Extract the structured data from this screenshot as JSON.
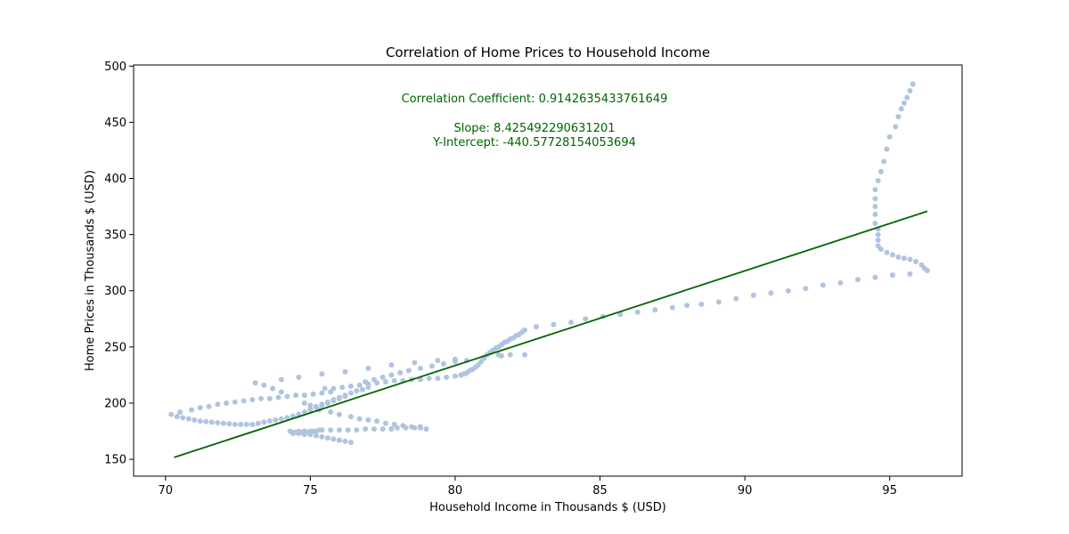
{
  "chart_data": {
    "type": "scatter",
    "title": "Correlation of Home Prices to Household Income",
    "xlabel": "Household Income in Thousands $ (USD)",
    "ylabel": "Home Prices in Thousands $ (USD)",
    "xlim": [
      68.9,
      97.5
    ],
    "ylim": [
      135,
      501
    ],
    "xticks": [
      70,
      75,
      80,
      85,
      90,
      95
    ],
    "yticks": [
      150,
      200,
      250,
      300,
      350,
      400,
      450,
      500
    ],
    "grid": false,
    "annotations": {
      "correlation": "Correlation Coefficient: 0.9142635433761649",
      "slope": "Slope: 8.425492290631201",
      "intercept": "Y-Intercept: -440.57728154053694"
    },
    "colors": {
      "points": "#b0c4de",
      "regression": "#006400"
    },
    "regression": {
      "slope": 8.425492290631201,
      "intercept": -440.57728154053694,
      "x_range": [
        70.3,
        96.3
      ]
    },
    "points": [
      [
        70.2,
        190
      ],
      [
        70.4,
        188
      ],
      [
        70.6,
        187
      ],
      [
        70.8,
        186
      ],
      [
        71.0,
        185
      ],
      [
        71.2,
        184
      ],
      [
        71.4,
        183.5
      ],
      [
        71.6,
        183
      ],
      [
        71.8,
        182.5
      ],
      [
        72.0,
        182
      ],
      [
        72.2,
        181.5
      ],
      [
        72.4,
        181
      ],
      [
        72.6,
        181
      ],
      [
        72.8,
        181
      ],
      [
        73.0,
        181
      ],
      [
        73.2,
        182
      ],
      [
        73.4,
        183
      ],
      [
        73.6,
        184
      ],
      [
        73.8,
        185
      ],
      [
        74.0,
        186
      ],
      [
        74.2,
        187
      ],
      [
        74.4,
        188.5
      ],
      [
        74.6,
        190
      ],
      [
        74.8,
        192
      ],
      [
        75.0,
        194
      ],
      [
        75.2,
        196
      ],
      [
        75.4,
        198
      ],
      [
        75.6,
        200
      ],
      [
        75.8,
        202
      ],
      [
        76.0,
        204
      ],
      [
        76.2,
        206
      ],
      [
        70.5,
        192
      ],
      [
        70.9,
        194
      ],
      [
        71.2,
        196
      ],
      [
        71.5,
        197
      ],
      [
        71.8,
        199
      ],
      [
        72.1,
        200
      ],
      [
        72.4,
        201
      ],
      [
        72.7,
        202
      ],
      [
        73.0,
        203
      ],
      [
        73.3,
        204
      ],
      [
        73.6,
        204
      ],
      [
        73.9,
        205
      ],
      [
        74.2,
        206
      ],
      [
        74.5,
        207
      ],
      [
        74.8,
        207
      ],
      [
        75.1,
        208
      ],
      [
        75.4,
        209
      ],
      [
        75.7,
        210
      ],
      [
        74.3,
        175
      ],
      [
        74.4,
        174
      ],
      [
        74.5,
        174
      ],
      [
        74.6,
        175
      ],
      [
        74.7,
        174
      ],
      [
        74.8,
        175
      ],
      [
        74.9,
        174
      ],
      [
        75.0,
        175
      ],
      [
        75.1,
        175
      ],
      [
        75.2,
        175
      ],
      [
        75.3,
        176
      ],
      [
        75.4,
        176
      ],
      [
        74.4,
        173
      ],
      [
        74.6,
        173
      ],
      [
        74.8,
        172
      ],
      [
        75.0,
        172
      ],
      [
        75.2,
        171
      ],
      [
        75.4,
        170
      ],
      [
        75.6,
        169
      ],
      [
        75.8,
        168
      ],
      [
        76.0,
        167
      ],
      [
        76.2,
        166
      ],
      [
        76.4,
        165
      ],
      [
        75.7,
        176
      ],
      [
        76.0,
        176
      ],
      [
        76.3,
        176
      ],
      [
        76.6,
        176
      ],
      [
        76.9,
        177
      ],
      [
        77.2,
        177
      ],
      [
        77.5,
        177
      ],
      [
        77.8,
        177
      ],
      [
        78.0,
        178
      ],
      [
        78.3,
        178
      ],
      [
        78.6,
        178
      ],
      [
        78.8,
        178
      ],
      [
        79.0,
        177
      ],
      [
        75.0,
        195
      ],
      [
        75.3,
        194
      ],
      [
        75.7,
        192
      ],
      [
        76.0,
        190
      ],
      [
        76.4,
        188
      ],
      [
        76.7,
        186
      ],
      [
        77.0,
        185
      ],
      [
        77.3,
        184
      ],
      [
        77.6,
        182
      ],
      [
        77.9,
        181
      ],
      [
        78.2,
        180
      ],
      [
        78.5,
        179
      ],
      [
        78.8,
        179
      ],
      [
        74.8,
        200
      ],
      [
        75.0,
        198
      ],
      [
        75.2,
        197
      ],
      [
        75.4,
        199
      ],
      [
        75.6,
        201
      ],
      [
        75.8,
        203
      ],
      [
        76.0,
        205
      ],
      [
        76.2,
        207
      ],
      [
        76.4,
        209
      ],
      [
        76.6,
        211
      ],
      [
        76.8,
        212
      ],
      [
        77.0,
        214
      ],
      [
        75.5,
        213
      ],
      [
        75.8,
        213
      ],
      [
        76.1,
        214
      ],
      [
        76.4,
        215
      ],
      [
        76.7,
        216
      ],
      [
        77.0,
        217
      ],
      [
        77.3,
        218
      ],
      [
        77.6,
        219
      ],
      [
        77.9,
        220
      ],
      [
        78.2,
        220
      ],
      [
        78.5,
        221
      ],
      [
        78.8,
        221
      ],
      [
        79.1,
        222
      ],
      [
        79.4,
        222
      ],
      [
        79.7,
        223
      ],
      [
        80.0,
        224
      ],
      [
        73.1,
        218
      ],
      [
        73.4,
        216
      ],
      [
        73.7,
        213
      ],
      [
        74.0,
        210
      ],
      [
        74.0,
        221
      ],
      [
        74.6,
        223
      ],
      [
        75.4,
        226
      ],
      [
        76.2,
        228
      ],
      [
        77.0,
        231
      ],
      [
        77.8,
        234
      ],
      [
        78.6,
        236
      ],
      [
        79.4,
        238
      ],
      [
        80.0,
        239
      ],
      [
        76.9,
        219
      ],
      [
        77.2,
        221
      ],
      [
        77.5,
        223
      ],
      [
        77.8,
        225
      ],
      [
        78.1,
        227
      ],
      [
        78.4,
        229
      ],
      [
        78.8,
        231
      ],
      [
        79.2,
        233
      ],
      [
        79.6,
        235
      ],
      [
        80.0,
        237
      ],
      [
        80.4,
        238
      ],
      [
        80.2,
        225
      ],
      [
        80.3,
        226
      ],
      [
        80.4,
        227
      ],
      [
        80.5,
        229
      ],
      [
        80.6,
        230
      ],
      [
        80.7,
        232
      ],
      [
        80.8,
        234
      ],
      [
        80.9,
        237
      ],
      [
        81.0,
        240
      ],
      [
        81.1,
        243
      ],
      [
        81.2,
        245
      ],
      [
        81.3,
        247
      ],
      [
        81.4,
        249
      ],
      [
        81.5,
        250
      ],
      [
        81.6,
        252
      ],
      [
        81.7,
        254
      ],
      [
        81.8,
        255
      ],
      [
        81.9,
        257
      ],
      [
        82.0,
        258
      ],
      [
        82.1,
        260
      ],
      [
        82.2,
        261
      ],
      [
        82.3,
        263
      ],
      [
        82.4,
        265
      ],
      [
        81.5,
        243
      ],
      [
        81.9,
        243
      ],
      [
        82.4,
        243
      ],
      [
        81.0,
        241
      ],
      [
        81.6,
        242
      ],
      [
        82.8,
        268
      ],
      [
        83.4,
        270
      ],
      [
        84.0,
        272
      ],
      [
        84.5,
        275
      ],
      [
        85.1,
        277
      ],
      [
        85.7,
        279
      ],
      [
        86.3,
        281
      ],
      [
        86.9,
        283
      ],
      [
        87.5,
        285
      ],
      [
        88.0,
        287
      ],
      [
        88.5,
        288
      ],
      [
        89.1,
        290
      ],
      [
        89.7,
        293
      ],
      [
        90.3,
        296
      ],
      [
        90.9,
        298
      ],
      [
        91.5,
        300
      ],
      [
        92.1,
        302
      ],
      [
        92.7,
        305
      ],
      [
        93.3,
        307
      ],
      [
        93.9,
        310
      ],
      [
        94.5,
        312
      ],
      [
        95.1,
        314
      ],
      [
        95.7,
        315
      ],
      [
        94.6,
        340
      ],
      [
        94.7,
        337
      ],
      [
        94.9,
        334
      ],
      [
        95.1,
        332
      ],
      [
        95.3,
        330
      ],
      [
        95.5,
        329
      ],
      [
        95.7,
        328
      ],
      [
        95.9,
        326
      ],
      [
        96.1,
        323
      ],
      [
        96.2,
        320
      ],
      [
        96.3,
        318
      ],
      [
        94.6,
        345
      ],
      [
        94.6,
        350
      ],
      [
        94.6,
        355
      ],
      [
        94.5,
        360
      ],
      [
        94.5,
        368
      ],
      [
        94.5,
        375
      ],
      [
        94.5,
        382
      ],
      [
        94.5,
        390
      ],
      [
        94.6,
        398
      ],
      [
        94.7,
        406
      ],
      [
        94.8,
        415
      ],
      [
        94.9,
        426
      ],
      [
        95.0,
        437
      ],
      [
        95.2,
        446
      ],
      [
        95.3,
        455
      ],
      [
        95.4,
        462
      ],
      [
        95.5,
        467
      ],
      [
        95.6,
        472
      ],
      [
        95.7,
        478
      ],
      [
        95.8,
        484
      ]
    ]
  }
}
